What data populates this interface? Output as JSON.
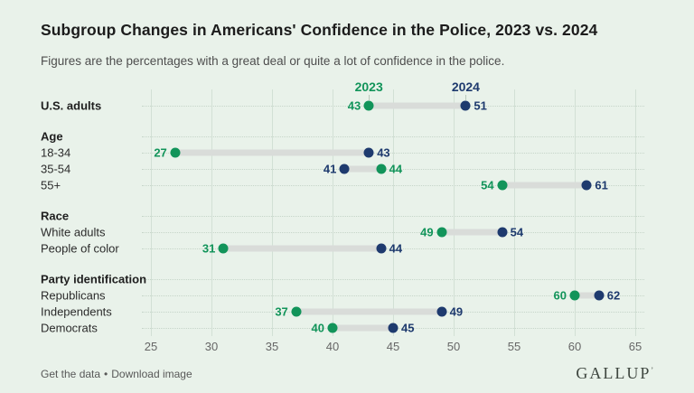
{
  "chart_data": {
    "type": "scatter",
    "variant": "dumbbell",
    "title": "Subgroup Changes in Americans' Confidence in the Police, 2023 vs. 2024",
    "subtitle": "Figures are the percentages with a great deal or quite a lot of confidence in the police.",
    "series": [
      {
        "name": "2023",
        "color": "#12945a"
      },
      {
        "name": "2024",
        "color": "#1e3a6e"
      }
    ],
    "rows": [
      {
        "kind": "data",
        "label": "U.S. adults",
        "bold": true,
        "v2023": 43,
        "v2024": 51
      },
      {
        "kind": "group",
        "label": "Age"
      },
      {
        "kind": "data",
        "label": "18-34",
        "bold": false,
        "v2023": 27,
        "v2024": 43
      },
      {
        "kind": "data",
        "label": "35-54",
        "bold": false,
        "v2023": 44,
        "v2024": 41
      },
      {
        "kind": "data",
        "label": "55+",
        "bold": false,
        "v2023": 54,
        "v2024": 61
      },
      {
        "kind": "group",
        "label": "Race"
      },
      {
        "kind": "data",
        "label": "White adults",
        "bold": false,
        "v2023": 49,
        "v2024": 54
      },
      {
        "kind": "data",
        "label": "People of color",
        "bold": false,
        "v2023": 31,
        "v2024": 44
      },
      {
        "kind": "group",
        "label": "Party identification"
      },
      {
        "kind": "data",
        "label": "Republicans",
        "bold": false,
        "v2023": 60,
        "v2024": 62
      },
      {
        "kind": "data",
        "label": "Independents",
        "bold": false,
        "v2023": 37,
        "v2024": 49
      },
      {
        "kind": "data",
        "label": "Democrats",
        "bold": false,
        "v2023": 40,
        "v2024": 45
      }
    ],
    "x_ticks": [
      25,
      30,
      35,
      40,
      45,
      50,
      55,
      60,
      65
    ],
    "xlim": [
      25,
      65
    ],
    "grid": true,
    "legend_position": "top",
    "connector_color": "#d9dcd9",
    "gridline_color": "#d2e0d5"
  },
  "footer": {
    "link1": "Get the data",
    "separator": "•",
    "link2": "Download image",
    "brand": "GALLUP",
    "brand_mark": "’"
  }
}
